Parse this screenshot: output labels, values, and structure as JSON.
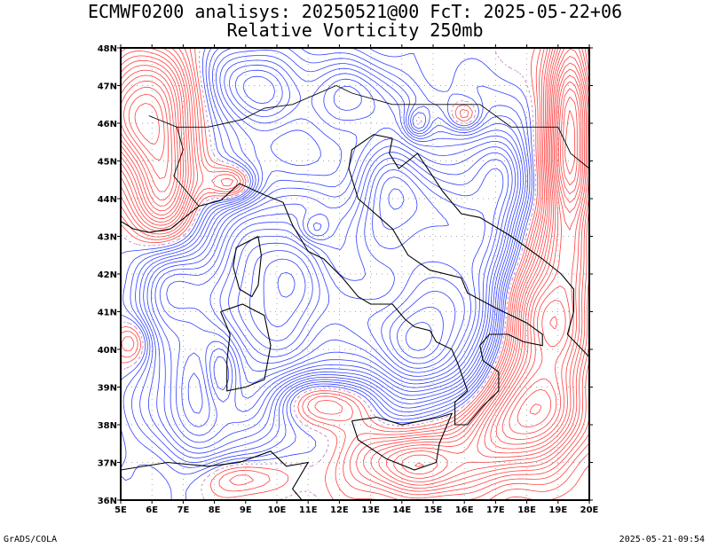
{
  "header": {
    "title_line1": "ECMWF0200 analisys: 20250521@00 FcT: 2025-05-22+06",
    "title_line2": "Relative Vorticity 250mb"
  },
  "map": {
    "lon_labels": [
      "5E",
      "6E",
      "7E",
      "8E",
      "9E",
      "10E",
      "11E",
      "12E",
      "13E",
      "14E",
      "15E",
      "16E",
      "17E",
      "18E",
      "19E",
      "20E"
    ],
    "lat_labels": [
      "36N",
      "37N",
      "38N",
      "39N",
      "40N",
      "41N",
      "42N",
      "43N",
      "44N",
      "45N",
      "46N",
      "47N",
      "48N"
    ],
    "lon_range": [
      5,
      20
    ],
    "lat_range": [
      36,
      48
    ],
    "colors": {
      "positive": "#ff4040",
      "negative": "#3040ff",
      "zero": "#c080c0",
      "coast": "#000000",
      "grid": "#888888"
    }
  },
  "footer": {
    "left": "GrADS/COLA",
    "right": "2025-05-21-09:54"
  }
}
